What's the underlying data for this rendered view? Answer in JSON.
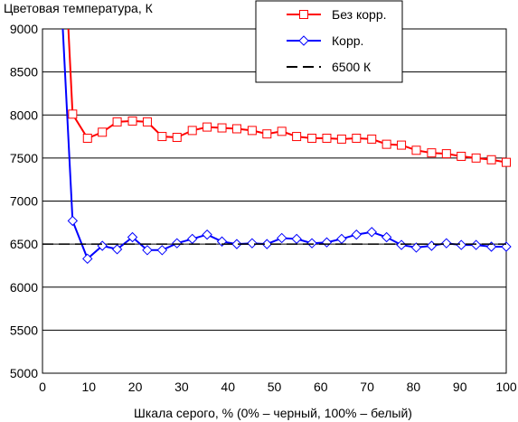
{
  "chart_data": {
    "type": "line",
    "ylabel": "Цветовая температура, К",
    "xlabel": "Шкала серого, % (0% – черный, 100% – белый)",
    "xlim": [
      0,
      100
    ],
    "ylim": [
      5000,
      9000
    ],
    "xticks": [
      0,
      10,
      20,
      30,
      40,
      50,
      60,
      70,
      80,
      90,
      100
    ],
    "yticks": [
      5000,
      5500,
      6000,
      6500,
      7000,
      7500,
      8000,
      8500,
      9000
    ],
    "grid": "horizontal",
    "legend_position": "top-right",
    "series": [
      {
        "name": "Без корр.",
        "color": "#ff0000",
        "marker": "square",
        "x": [
          6.5,
          9.7,
          12.9,
          16.1,
          19.4,
          22.6,
          25.8,
          29.0,
          32.3,
          35.5,
          38.7,
          41.9,
          45.2,
          48.4,
          51.6,
          54.8,
          58.1,
          61.3,
          64.5,
          67.7,
          71.0,
          74.2,
          77.4,
          80.6,
          83.9,
          87.1,
          90.3,
          93.5,
          96.8,
          100
        ],
        "y": [
          8010,
          7730,
          7800,
          7920,
          7930,
          7920,
          7750,
          7740,
          7820,
          7860,
          7850,
          7840,
          7820,
          7780,
          7810,
          7750,
          7730,
          7730,
          7720,
          7730,
          7720,
          7660,
          7650,
          7590,
          7560,
          7550,
          7520,
          7500,
          7480,
          7450
        ]
      },
      {
        "name": "Корр.",
        "color": "#0000ff",
        "marker": "diamond",
        "x": [
          6.5,
          9.7,
          12.9,
          16.1,
          19.4,
          22.6,
          25.8,
          29.0,
          32.3,
          35.5,
          38.7,
          41.9,
          45.2,
          48.4,
          51.6,
          54.8,
          58.1,
          61.3,
          64.5,
          67.7,
          71.0,
          74.2,
          77.4,
          80.6,
          83.9,
          87.1,
          90.3,
          93.5,
          96.8,
          100
        ],
        "y": [
          6770,
          6330,
          6480,
          6440,
          6580,
          6430,
          6430,
          6510,
          6560,
          6610,
          6530,
          6500,
          6510,
          6500,
          6570,
          6560,
          6510,
          6520,
          6560,
          6610,
          6640,
          6580,
          6490,
          6460,
          6480,
          6510,
          6490,
          6490,
          6470,
          6470
        ]
      },
      {
        "name": "6500 К",
        "color": "#000000",
        "marker": "none",
        "dashed": true,
        "x": [
          0,
          100
        ],
        "y": [
          6500,
          6500
        ]
      }
    ]
  }
}
